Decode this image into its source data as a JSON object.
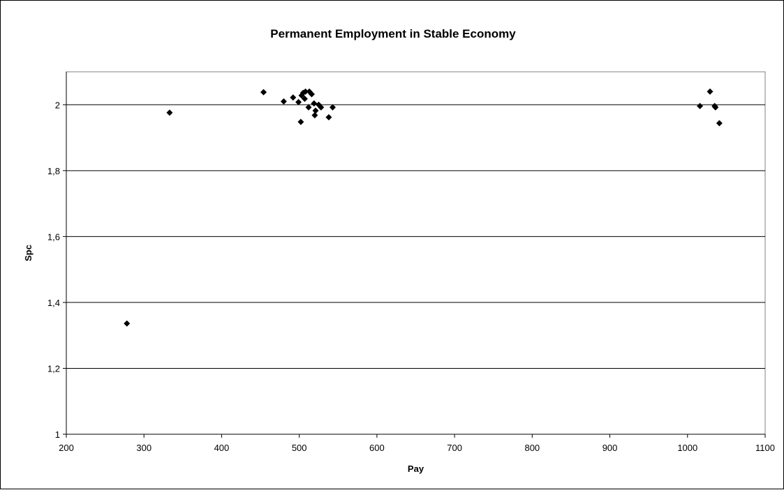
{
  "chart_data": {
    "type": "scatter",
    "title": "Permanent Employment in Stable Economy",
    "xlabel": "Pay",
    "ylabel": "Spc",
    "xlim": [
      200,
      1100
    ],
    "ylim": [
      1,
      2.1
    ],
    "x_ticks": [
      200,
      300,
      400,
      500,
      600,
      700,
      800,
      900,
      1000,
      1100
    ],
    "x_tick_labels": [
      "200",
      "300",
      "400",
      "500",
      "600",
      "700",
      "800",
      "900",
      "1000",
      "1100"
    ],
    "y_ticks": [
      1,
      1.2,
      1.4,
      1.6,
      1.8,
      2
    ],
    "y_tick_labels": [
      "1",
      "1,2",
      "1,4",
      "1,6",
      "1,8",
      "2"
    ],
    "grid": "horizontal",
    "legend": "none",
    "marker": "diamond",
    "marker_color": "#000000",
    "series": [
      {
        "points": [
          [
            278,
            1.336
          ],
          [
            333,
            1.976
          ],
          [
            454,
            2.038
          ],
          [
            480,
            2.01
          ],
          [
            492,
            2.022
          ],
          [
            499,
            2.008
          ],
          [
            502,
            1.948
          ],
          [
            503,
            2.028
          ],
          [
            505,
            2.036
          ],
          [
            507,
            2.018
          ],
          [
            508,
            2.04
          ],
          [
            512,
            1.992
          ],
          [
            513,
            2.04
          ],
          [
            516,
            2.032
          ],
          [
            519,
            2.004
          ],
          [
            520,
            1.968
          ],
          [
            521,
            1.982
          ],
          [
            525,
            2.0
          ],
          [
            528,
            1.992
          ],
          [
            538,
            1.962
          ],
          [
            543,
            1.992
          ],
          [
            1016,
            1.996
          ],
          [
            1029,
            2.04
          ],
          [
            1035,
            1.996
          ],
          [
            1036,
            1.992
          ],
          [
            1041,
            1.944
          ]
        ]
      }
    ]
  }
}
